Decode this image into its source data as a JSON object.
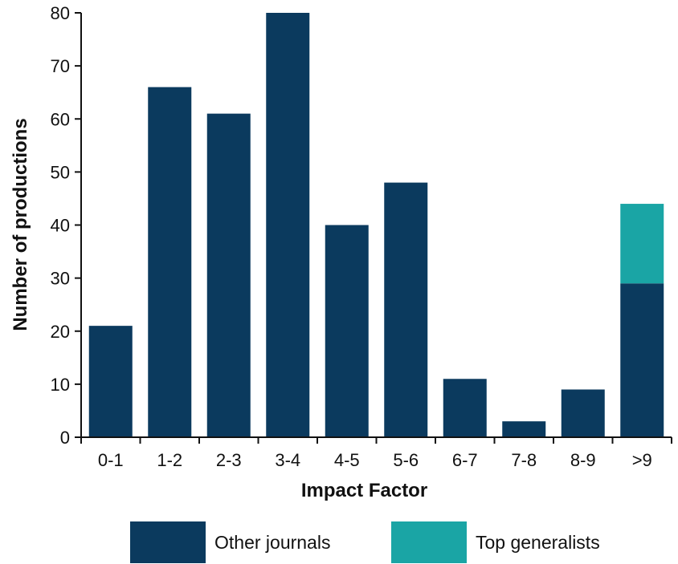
{
  "chart_data": {
    "type": "bar",
    "stacked": true,
    "categories": [
      "0-1",
      "1-2",
      "2-3",
      "3-4",
      "4-5",
      "5-6",
      "6-7",
      "7-8",
      "8-9",
      ">9"
    ],
    "series": [
      {
        "name": "Other journals",
        "color": "#0b3a5e",
        "values": [
          21,
          66,
          61,
          80,
          40,
          48,
          11,
          3,
          9,
          29
        ]
      },
      {
        "name": "Top generalists",
        "color": "#1aa5a5",
        "values": [
          0,
          0,
          0,
          0,
          0,
          0,
          0,
          0,
          0,
          15
        ]
      }
    ],
    "xlabel": "Impact Factor",
    "ylabel": "Number of productions",
    "ylim": [
      0,
      80
    ],
    "yticks": [
      0,
      10,
      20,
      30,
      40,
      50,
      60,
      70,
      80
    ],
    "grid": false,
    "legend_position": "bottom"
  }
}
